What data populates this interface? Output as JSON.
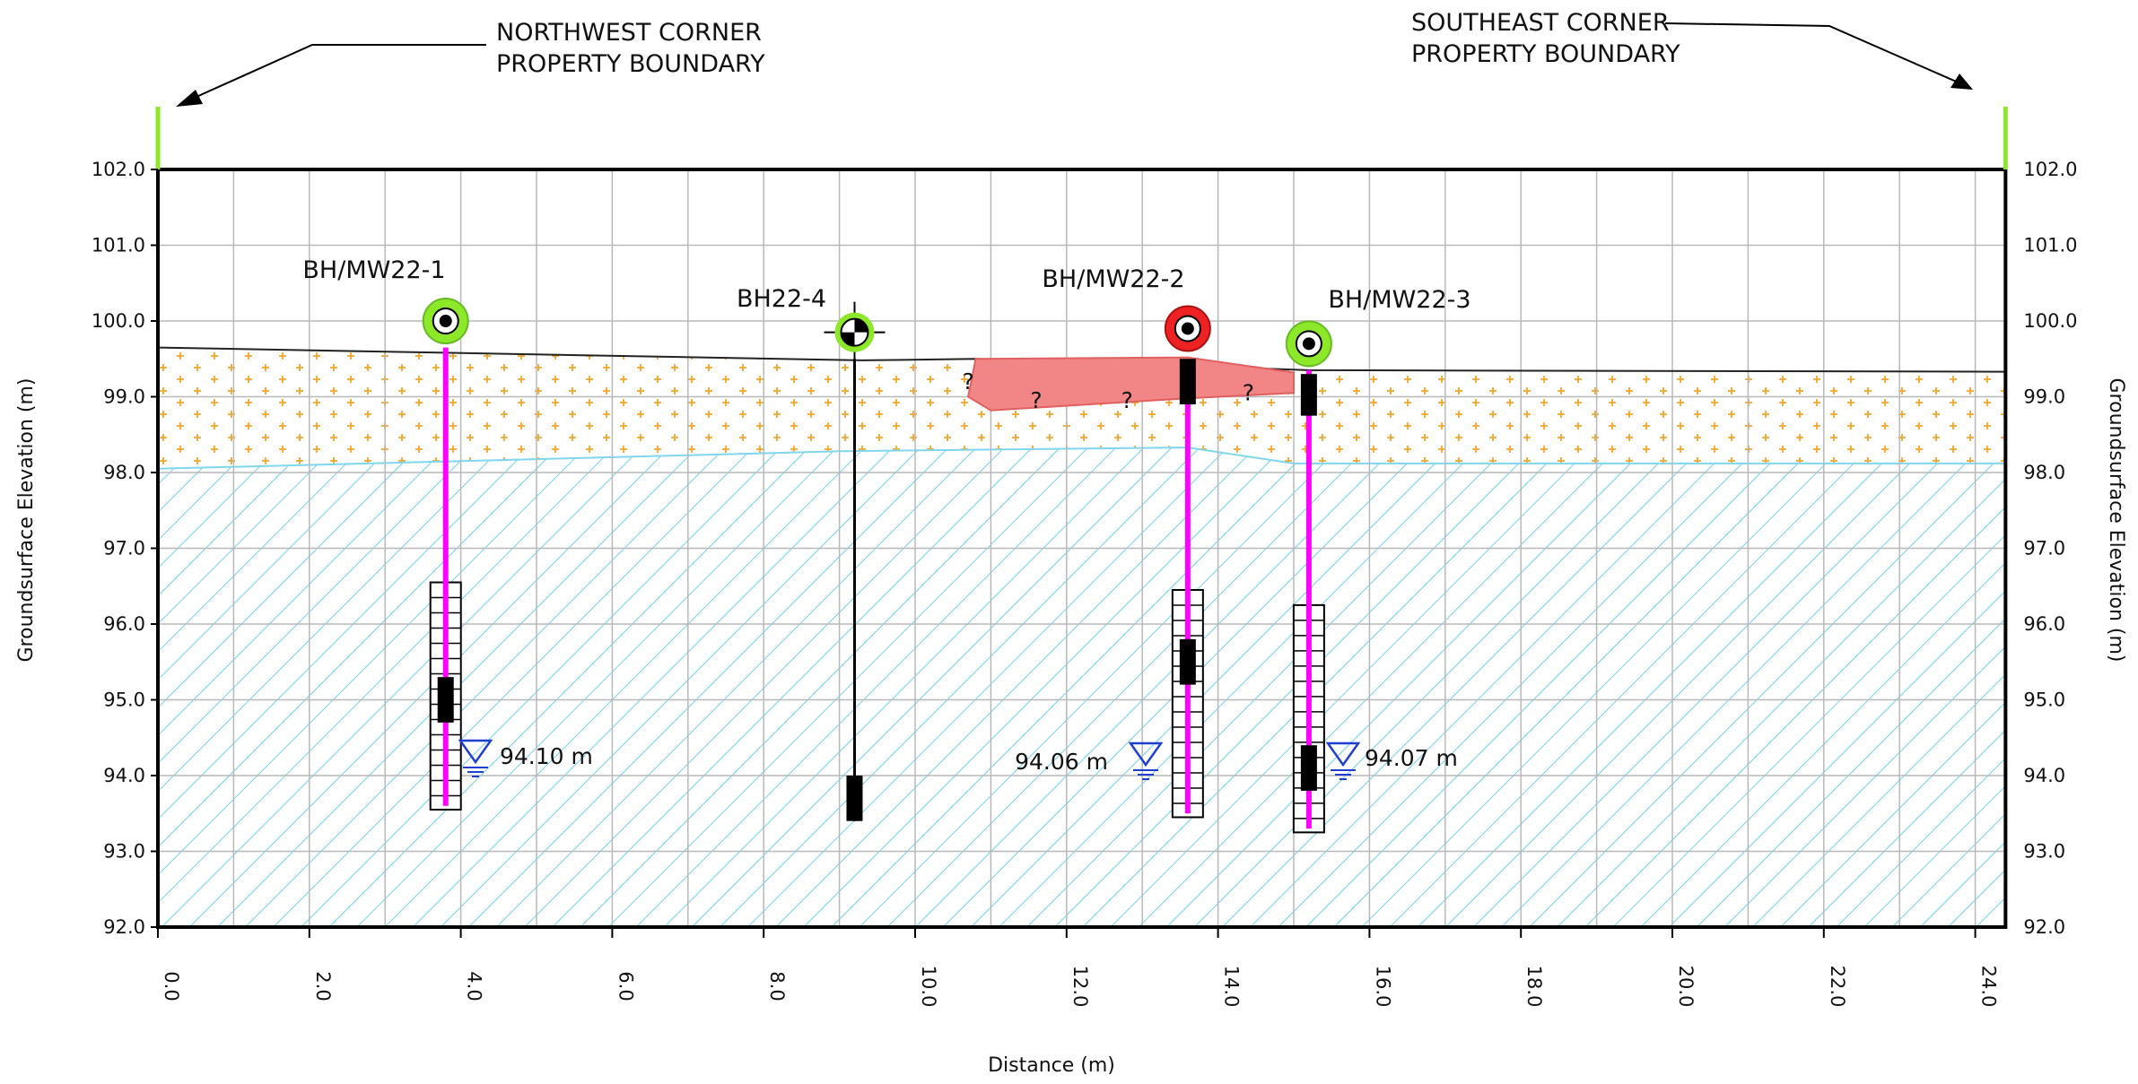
{
  "annotations": {
    "northwest": [
      "NORTHWEST CORNER",
      "PROPERTY BOUNDARY"
    ],
    "southeast": [
      "SOUTHEAST CORNER",
      "PROPERTY BOUNDARY"
    ]
  },
  "y_axis_label": "Groundsurface Elevation (m)",
  "x_axis_label": "Distance (m)",
  "y_ticks": [
    "92.0",
    "93.0",
    "94.0",
    "95.0",
    "96.0",
    "97.0",
    "98.0",
    "99.0",
    "100.0",
    "101.0",
    "102.0"
  ],
  "x_ticks": [
    "0.0",
    "2.0",
    "4.0",
    "6.0",
    "8.0",
    "10.0",
    "12.0",
    "14.0",
    "16.0",
    "18.0",
    "20.0",
    "22.0",
    "24.0"
  ],
  "boreholes": [
    {
      "name": "BH/MW22-1"
    },
    {
      "name": "BH22-4"
    },
    {
      "name": "BH/MW22-2"
    },
    {
      "name": "BH/MW22-3"
    }
  ],
  "water_levels": [
    "94.10  m",
    "94.06  m",
    "94.07  m"
  ],
  "question_marks": [
    "?",
    "?",
    "?",
    "?"
  ]
}
